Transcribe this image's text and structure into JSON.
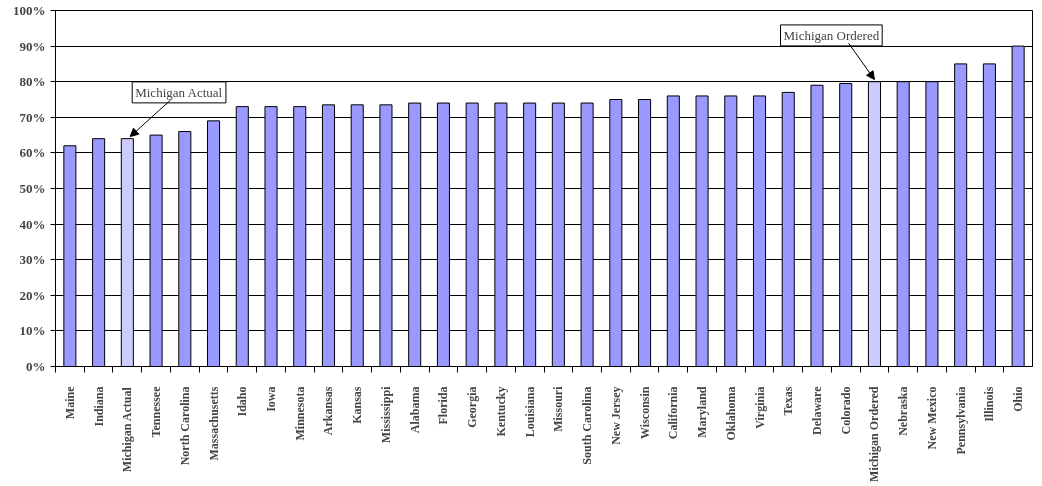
{
  "chart_data": {
    "type": "bar",
    "categories": [
      "Maine",
      "Indiana",
      "Michigan Actual",
      "Tennessee",
      "North Carolina",
      "Massachusetts",
      "Idaho",
      "Iowa",
      "Minnesota",
      "Arkansas",
      "Kansas",
      "Mississippi",
      "Alabama",
      "Florida",
      "Georgia",
      "Kentucky",
      "Louisiana",
      "Missouri",
      "South Carolina",
      "New Jersey",
      "Wisconsin",
      "California",
      "Maryland",
      "Oklahoma",
      "Virginia",
      "Texas",
      "Delaware",
      "Colorado",
      "Michigan Ordered",
      "Nebraska",
      "New Mexico",
      "Pennsylvania",
      "Illinois",
      "Ohio"
    ],
    "values": [
      62,
      64,
      64,
      65,
      66,
      69,
      73,
      73,
      73,
      73.5,
      73.5,
      73.5,
      74,
      74,
      74,
      74,
      74,
      74,
      74,
      75,
      75,
      76,
      76,
      76,
      76,
      77,
      79,
      79.5,
      80,
      80,
      80,
      85,
      85,
      90
    ],
    "colors": [
      "#9999ff",
      "#9999ff",
      "#ccccff",
      "#9999ff",
      "#9999ff",
      "#9999ff",
      "#9999ff",
      "#9999ff",
      "#9999ff",
      "#9999ff",
      "#9999ff",
      "#9999ff",
      "#9999ff",
      "#9999ff",
      "#9999ff",
      "#9999ff",
      "#9999ff",
      "#9999ff",
      "#9999ff",
      "#9999ff",
      "#9999ff",
      "#9999ff",
      "#9999ff",
      "#9999ff",
      "#9999ff",
      "#9999ff",
      "#9999ff",
      "#9999ff",
      "#ccccff",
      "#9999ff",
      "#9999ff",
      "#9999ff",
      "#9999ff",
      "#9999ff"
    ],
    "ylim": [
      0,
      100
    ],
    "yticks": [
      {
        "value": 0,
        "label": "0%"
      },
      {
        "value": 10,
        "label": "10%"
      },
      {
        "value": 20,
        "label": "20%"
      },
      {
        "value": 30,
        "label": "30%"
      },
      {
        "value": 40,
        "label": "40%"
      },
      {
        "value": 50,
        "label": "50%"
      },
      {
        "value": 60,
        "label": "60%"
      },
      {
        "value": 70,
        "label": "70%"
      },
      {
        "value": 80,
        "label": "80%"
      },
      {
        "value": 90,
        "label": "90%"
      },
      {
        "value": 100,
        "label": "100%"
      }
    ],
    "grid": "y",
    "annotations": [
      {
        "text": "Michigan Actual",
        "x": "Michigan Actual",
        "y": 64
      },
      {
        "text": "Michigan Ordered",
        "x": "Michigan Ordered",
        "y": 80
      }
    ]
  }
}
